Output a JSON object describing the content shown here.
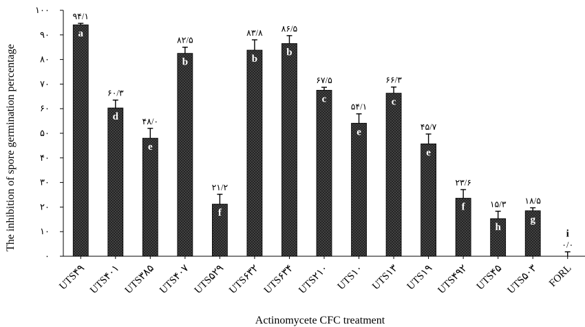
{
  "chart_data": {
    "type": "bar",
    "xlabel": "Actinomycete CFC treatment",
    "ylabel": "The inhibition of spore germination percentage",
    "ylim": [
      0,
      100
    ],
    "yticks": [
      "۰",
      "۱۰",
      "۲۰",
      "۳۰",
      "۴۰",
      "۵۰",
      "۶۰",
      "۷۰",
      "۸۰",
      "۹۰",
      "۱۰۰"
    ],
    "grid": false,
    "legend": "none",
    "bar_color": "#1a1a1a",
    "bars": [
      {
        "category": "UTS۴۹",
        "value": 94.1,
        "label": "۹۴/۱",
        "group": "a",
        "error": 0.6
      },
      {
        "category": "UTS۴۰۱",
        "value": 60.3,
        "label": "۶۰/۳",
        "group": "d",
        "error": 3.2
      },
      {
        "category": "UTS۳۸۵",
        "value": 48.0,
        "label": "۴۸/۰",
        "group": "e",
        "error": 4.0
      },
      {
        "category": "UTS۴۰۷",
        "value": 82.5,
        "label": "۸۲/۵",
        "group": "b",
        "error": 2.5
      },
      {
        "category": "UTS۵۲۹",
        "value": 21.2,
        "label": "۲۱/۲",
        "group": "f",
        "error": 4.0
      },
      {
        "category": "UTS۶۳۲",
        "value": 83.8,
        "label": "۸۳/۸",
        "group": "b",
        "error": 4.2
      },
      {
        "category": "UTS۶۳۴",
        "value": 86.5,
        "label": "۸۶/۵",
        "group": "b",
        "error": 3.2
      },
      {
        "category": "UTS۲۱۰",
        "value": 67.5,
        "label": "۶۷/۵",
        "group": "c",
        "error": 1.2
      },
      {
        "category": "UTS۱۰",
        "value": 54.1,
        "label": "۵۴/۱",
        "group": "e",
        "error": 3.8
      },
      {
        "category": "UTS۱۳",
        "value": 66.3,
        "label": "۶۶/۳",
        "group": "c",
        "error": 2.5
      },
      {
        "category": "UTS۱۹",
        "value": 45.7,
        "label": "۴۵/۷",
        "group": "e",
        "error": 4.0
      },
      {
        "category": "UTS۴۹۲",
        "value": 23.6,
        "label": "۲۳/۶",
        "group": "f",
        "error": 3.5
      },
      {
        "category": "UTS۴۵",
        "value": 15.3,
        "label": "۱۵/۳",
        "group": "h",
        "error": 3.0
      },
      {
        "category": "UTS۵۰۳",
        "value": 18.5,
        "label": "۱۸/۵",
        "group": "g",
        "error": 1.2
      },
      {
        "category": "FORL",
        "value": 0.0,
        "label": "۰/۰",
        "group": "i",
        "error": 1.8
      }
    ]
  }
}
